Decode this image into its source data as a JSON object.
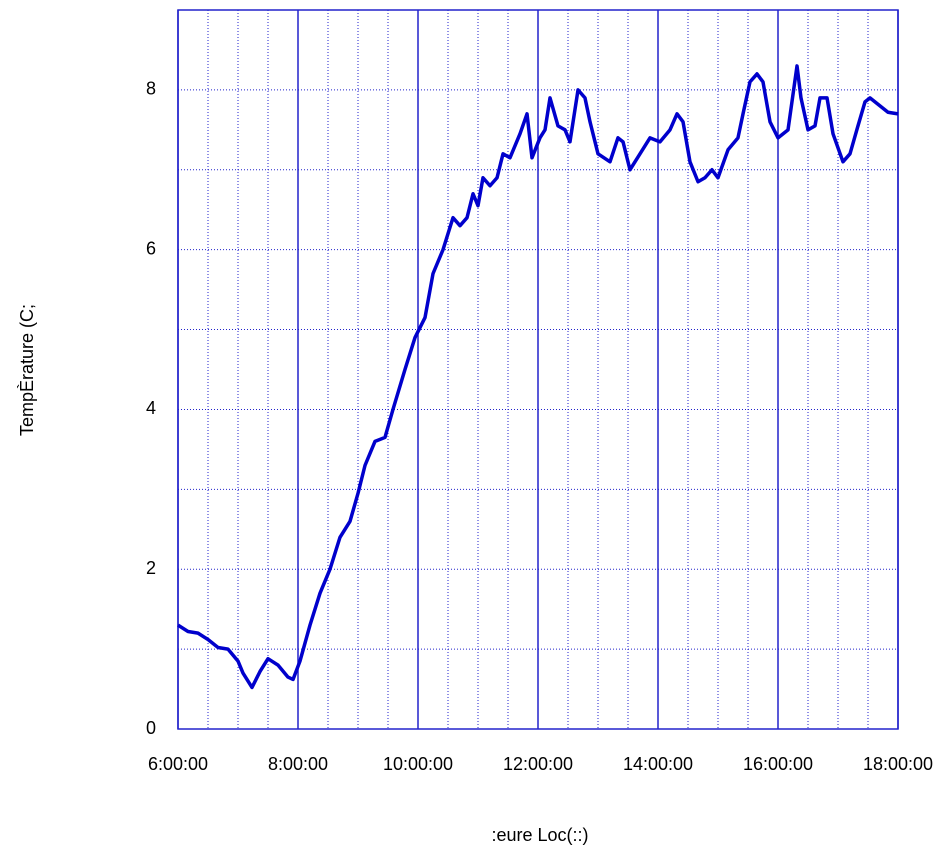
{
  "chart_data": {
    "type": "line",
    "xlabel": ":eure Loc(::)",
    "ylabel": "TempÈrature (C;",
    "x": [
      6,
      6.167,
      6.333,
      6.5,
      6.667,
      6.833,
      7,
      7.083,
      7.233,
      7.367,
      7.5,
      7.667,
      7.833,
      7.917,
      8.033,
      8.2,
      8.367,
      8.533,
      8.7,
      8.867,
      9,
      9.117,
      9.283,
      9.45,
      9.583,
      9.783,
      9.95,
      10.117,
      10.25,
      10.417,
      10.583,
      10.7,
      10.817,
      10.917,
      11,
      11.083,
      11.2,
      11.317,
      11.417,
      11.533,
      11.7,
      11.817,
      11.9,
      12.033,
      12.117,
      12.2,
      12.333,
      12.45,
      12.533,
      12.667,
      12.783,
      12.867,
      13,
      13.2,
      13.333,
      13.417,
      13.533,
      13.7,
      13.867,
      14.033,
      14.2,
      14.317,
      14.417,
      14.533,
      14.667,
      14.783,
      14.9,
      15,
      15.167,
      15.333,
      15.417,
      15.533,
      15.65,
      15.75,
      15.867,
      16,
      16.167,
      16.317,
      16.383,
      16.5,
      16.617,
      16.7,
      16.817,
      16.917,
      17.083,
      17.2,
      17.333,
      17.45,
      17.533,
      17.7,
      17.833,
      18
    ],
    "series": [
      {
        "color": "#0000cc",
        "values": [
          1.3,
          1.22,
          1.2,
          1.12,
          1.02,
          1.0,
          0.85,
          0.7,
          0.52,
          0.72,
          0.88,
          0.8,
          0.65,
          0.62,
          0.85,
          1.3,
          1.7,
          2.0,
          2.4,
          2.6,
          2.95,
          3.3,
          3.6,
          3.65,
          4.0,
          4.5,
          4.9,
          5.15,
          5.7,
          6.0,
          6.4,
          6.3,
          6.4,
          6.7,
          6.55,
          6.9,
          6.8,
          6.9,
          7.2,
          7.15,
          7.45,
          7.7,
          7.15,
          7.4,
          7.5,
          7.9,
          7.55,
          7.5,
          7.35,
          8.0,
          7.9,
          7.6,
          7.2,
          7.1,
          7.4,
          7.35,
          7.0,
          7.2,
          7.4,
          7.35,
          7.5,
          7.7,
          7.6,
          7.1,
          6.85,
          6.9,
          7.0,
          6.9,
          7.25,
          7.4,
          7.7,
          8.1,
          8.2,
          8.1,
          7.6,
          7.4,
          7.5,
          8.3,
          7.9,
          7.5,
          7.55,
          7.9,
          7.9,
          7.45,
          7.1,
          7.2,
          7.55,
          7.85,
          7.9,
          7.8,
          7.72,
          7.7
        ]
      }
    ],
    "xlim": [
      6,
      18
    ],
    "ylim": [
      0,
      9
    ],
    "xticks": [
      {
        "value": 6,
        "label": "6:00:00"
      },
      {
        "value": 8,
        "label": "8:00:00"
      },
      {
        "value": 10,
        "label": "10:00:00"
      },
      {
        "value": 12,
        "label": "12:00:00"
      },
      {
        "value": 14,
        "label": "14:00:00"
      },
      {
        "value": 16,
        "label": "16:00:00"
      },
      {
        "value": 18,
        "label": "18:00:00"
      }
    ],
    "yticks": [
      0,
      2,
      4,
      6,
      8
    ],
    "xminorticks": [
      6.5,
      7,
      7.5,
      8.5,
      9,
      9.5,
      10.5,
      11,
      11.5,
      12.5,
      13,
      13.5,
      14.5,
      15,
      15.5,
      16.5,
      17,
      17.5
    ],
    "yminorticks": [
      1,
      3,
      5,
      7
    ],
    "grid": true
  }
}
